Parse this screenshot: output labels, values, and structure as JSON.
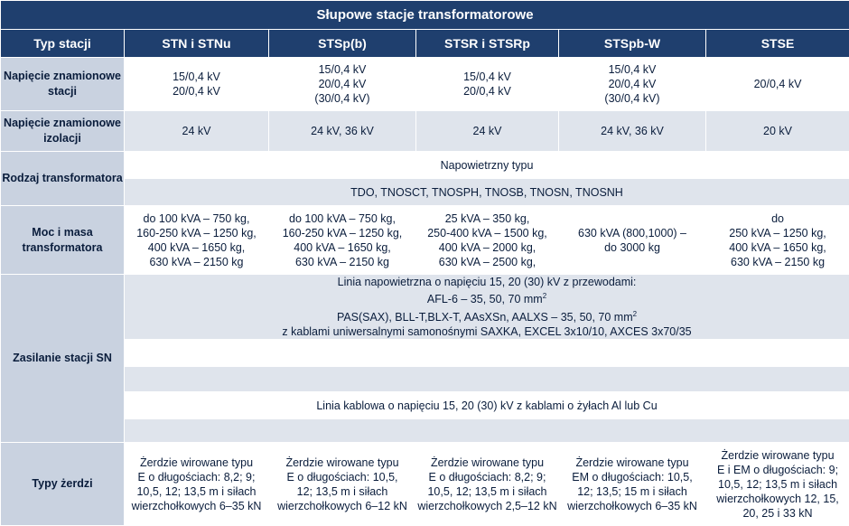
{
  "title": "Słupowe stacje transformatorowe",
  "headers": [
    "Typ stacji",
    "STN i STNu",
    "STSp(b)",
    "STSR i STSRp",
    "STSpb-W",
    "STSE"
  ],
  "rows": {
    "napiecie_stacji": {
      "label": [
        "Napięcie znamionowe",
        "stacji"
      ],
      "cells": [
        [
          "15/0,4 kV",
          "20/0,4 kV"
        ],
        [
          "15/0,4 kV",
          "20/0,4 kV",
          "(30/0,4 kV)"
        ],
        [
          "15/0,4 kV",
          "20/0,4 kV"
        ],
        [
          "15/0,4 kV",
          "20/0,4 kV",
          "(30/0,4 kV)"
        ],
        [
          "20/0,4 kV"
        ]
      ]
    },
    "napiecie_izolacji": {
      "label": [
        "Napięcie znamionowe",
        "izolacji"
      ],
      "cells": [
        "24 kV",
        "24 kV, 36 kV",
        "24 kV",
        "24 kV, 36 kV",
        "20 kV"
      ]
    },
    "rodzaj": {
      "label": "Rodzaj transformatora",
      "line1": "Napowietrzny typu",
      "line2": "TDO, TNOSCT, TNOSPH, TNOSB, TNOSN, TNOSNH"
    },
    "moc": {
      "label": [
        "Moc i masa",
        "transformatora"
      ],
      "cells": [
        [
          "do 100 kVA – 750 kg,",
          "160-250 kVA – 1250 kg,",
          "400 kVA – 1650 kg,",
          "630 kVA – 2150 kg"
        ],
        [
          "do 100 kVA – 750 kg,",
          "160-250 kVA – 1250 kg,",
          "400 kVA – 1650 kg,",
          "630 kVA – 2150 kg"
        ],
        [
          "25 kVA – 350 kg,",
          "250-400 kVA – 1500 kg,",
          "400 kVA – 2000 kg,",
          "630 kVA – 2500 kg,"
        ],
        [
          "630 kVA (800,1000) –",
          "do 3000 kg"
        ],
        [
          "do",
          "250 kVA – 1250 kg,",
          "400 kVA – 1650 kg,",
          "630 kVA – 2150 kg"
        ]
      ]
    },
    "zasilanie": {
      "label": "Zasilanie stacji SN",
      "l1": "Linia napowietrzna o napięciu 15, 20 (30) kV z przewodami:",
      "l2": "AFL-6 – 35, 50, 70 mm",
      "l2sup": "2",
      "l3": "PAS(SAX), BLL-T,BLX-T, AAsXSn, AALXS – 35, 50, 70 mm",
      "l3sup": "2",
      "l4": "z kablami uniwersalnymi samonośnymi SAXKA, EXCEL 3x10/10, AXCES 3x70/35",
      "kabel": "Linia kablowa o napięciu 15, 20 (30) kV z kablami o żyłach Al lub Cu"
    },
    "zerdzie": {
      "label": "Typy żerdzi",
      "cells": [
        [
          "Żerdzie wirowane typu",
          "E o długościach: 8,2; 9;",
          "10,5, 12; 13,5 m i siłach",
          "wierzchołkowych 6–35 kN"
        ],
        [
          "Żerdzie wirowane typu",
          "E o długościach: 10,5,",
          "12; 13,5 m i siłach",
          "wierzchołkowych 6–12 kN"
        ],
        [
          "Żerdzie wirowane typu",
          "E o długościach: 8,2; 9;",
          "10,5, 12; 13,5 m i siłach",
          "wierzchołkowych 2,5–12 kN"
        ],
        [
          "Żerdzie wirowane typu",
          "EM o długościach: 10,5,",
          "12; 13,5; 15 m i siłach",
          "wierzchołkowych 6–35 kN"
        ],
        [
          "Żerdzie wirowane typu",
          "E i EM o długościach: 9;",
          "10,5, 12; 13,5 m i siłach",
          "wierzchołkowych 12, 15,",
          "20, 25 i 33 kN"
        ]
      ]
    }
  },
  "colors": {
    "header_bg": "#1f3f6e",
    "label_bg": "#c9d2e0",
    "cell_gray": "#dfe4ec",
    "text": "#0a1d3c"
  }
}
